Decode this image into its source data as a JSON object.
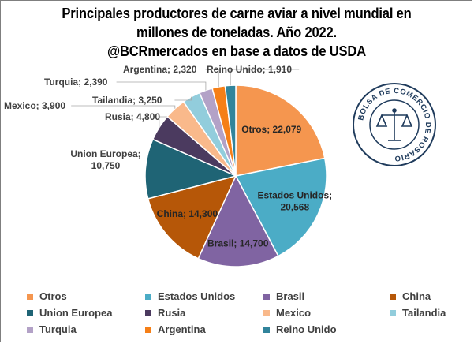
{
  "title": {
    "line1": "Principales productores de carne aviar a nivel mundial en",
    "line2": "millones de toneladas. Año 2022.",
    "line3": "@BCRmercados  en base a datos de USDA"
  },
  "seal": {
    "text": "BOLSA DE COMERCIO DE ROSARIO"
  },
  "chart_data": {
    "type": "pie",
    "title": "Principales productores de carne aviar a nivel mundial en millones de toneladas. Año 2022.",
    "legend_position": "bottom",
    "slices": [
      {
        "name": "Otros",
        "value": 22079,
        "label": "Otros; 22,079",
        "color": "#F5964F"
      },
      {
        "name": "Estados Unidos",
        "value": 20568,
        "label": "Estados  Unidos;\n20,568",
        "color": "#4BACC6"
      },
      {
        "name": "Brasil",
        "value": 14700,
        "label": "Brasil; 14,700",
        "color": "#8064A2"
      },
      {
        "name": "China",
        "value": 14300,
        "label": "China; 14,300",
        "color": "#B65708"
      },
      {
        "name": "Union Europea",
        "value": 10750,
        "label": "Union Europea;\n10,750",
        "color": "#1F6475"
      },
      {
        "name": "Rusia",
        "value": 4800,
        "label": "Rusia; 4,800",
        "color": "#4B3A5F"
      },
      {
        "name": "Mexico",
        "value": 3900,
        "label": "Mexico; 3,900",
        "color": "#F9B98B"
      },
      {
        "name": "Tailandia",
        "value": 3250,
        "label": "Tailandia; 3,250",
        "color": "#92CDDC"
      },
      {
        "name": "Turquia",
        "value": 2390,
        "label": "Turquia; 2,390",
        "color": "#B3A2C7"
      },
      {
        "name": "Argentina",
        "value": 2320,
        "label": "Argentina; 2,320",
        "color": "#F57F17"
      },
      {
        "name": "Reino Unido",
        "value": 1910,
        "label": "Reino Unido; 1,910",
        "color": "#31849B"
      }
    ]
  }
}
